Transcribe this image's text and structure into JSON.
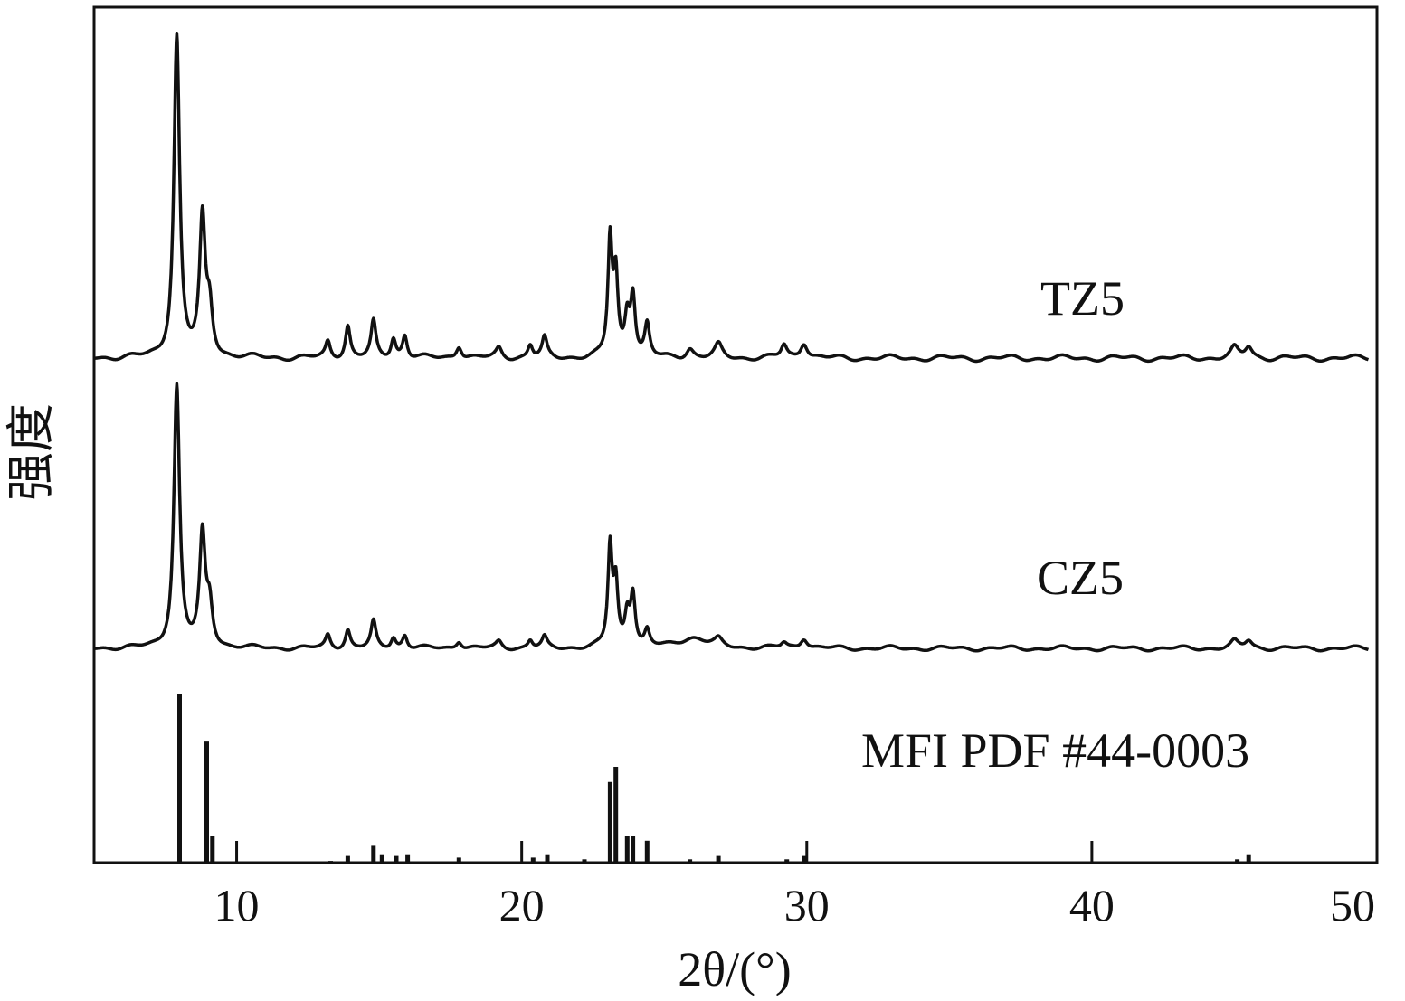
{
  "chart_data": {
    "type": "line",
    "xlabel": "2θ/(°)",
    "ylabel": "强度",
    "xlim": [
      5,
      50
    ],
    "xticks": [
      10,
      20,
      30,
      40,
      50
    ],
    "grid": false,
    "line_color": "#111111",
    "series": [
      {
        "name": "TZ5",
        "kind": "pattern",
        "baseline": 0.03,
        "peaks": [
          {
            "x": 7.9,
            "h": 1.0,
            "w": 0.12
          },
          {
            "x": 8.8,
            "h": 0.42,
            "w": 0.12
          },
          {
            "x": 9.05,
            "h": 0.14,
            "w": 0.12
          },
          {
            "x": 13.2,
            "h": 0.05,
            "w": 0.1
          },
          {
            "x": 13.9,
            "h": 0.1,
            "w": 0.1
          },
          {
            "x": 14.8,
            "h": 0.11,
            "w": 0.1
          },
          {
            "x": 15.5,
            "h": 0.06,
            "w": 0.1
          },
          {
            "x": 15.9,
            "h": 0.07,
            "w": 0.1
          },
          {
            "x": 17.8,
            "h": 0.04,
            "w": 0.12
          },
          {
            "x": 19.2,
            "h": 0.03,
            "w": 0.12
          },
          {
            "x": 20.3,
            "h": 0.04,
            "w": 0.1
          },
          {
            "x": 20.8,
            "h": 0.06,
            "w": 0.1
          },
          {
            "x": 23.1,
            "h": 0.36,
            "w": 0.09
          },
          {
            "x": 23.3,
            "h": 0.24,
            "w": 0.09
          },
          {
            "x": 23.7,
            "h": 0.12,
            "w": 0.1
          },
          {
            "x": 23.9,
            "h": 0.19,
            "w": 0.1
          },
          {
            "x": 24.4,
            "h": 0.1,
            "w": 0.1
          },
          {
            "x": 25.9,
            "h": 0.03,
            "w": 0.15
          },
          {
            "x": 26.9,
            "h": 0.04,
            "w": 0.15
          },
          {
            "x": 29.2,
            "h": 0.04,
            "w": 0.12
          },
          {
            "x": 29.9,
            "h": 0.05,
            "w": 0.15
          },
          {
            "x": 45.0,
            "h": 0.03,
            "w": 0.15
          },
          {
            "x": 45.5,
            "h": 0.035,
            "w": 0.15
          }
        ]
      },
      {
        "name": "CZ5",
        "kind": "pattern",
        "baseline": 0.03,
        "peaks": [
          {
            "x": 7.9,
            "h": 1.0,
            "w": 0.12
          },
          {
            "x": 8.8,
            "h": 0.42,
            "w": 0.12
          },
          {
            "x": 9.05,
            "h": 0.15,
            "w": 0.12
          },
          {
            "x": 13.2,
            "h": 0.05,
            "w": 0.1
          },
          {
            "x": 13.9,
            "h": 0.07,
            "w": 0.1
          },
          {
            "x": 14.8,
            "h": 0.1,
            "w": 0.1
          },
          {
            "x": 15.5,
            "h": 0.04,
            "w": 0.1
          },
          {
            "x": 15.9,
            "h": 0.05,
            "w": 0.1
          },
          {
            "x": 17.8,
            "h": 0.03,
            "w": 0.12
          },
          {
            "x": 19.2,
            "h": 0.025,
            "w": 0.12
          },
          {
            "x": 20.3,
            "h": 0.03,
            "w": 0.1
          },
          {
            "x": 20.8,
            "h": 0.04,
            "w": 0.1
          },
          {
            "x": 23.1,
            "h": 0.38,
            "w": 0.09
          },
          {
            "x": 23.3,
            "h": 0.23,
            "w": 0.09
          },
          {
            "x": 23.7,
            "h": 0.12,
            "w": 0.1
          },
          {
            "x": 23.9,
            "h": 0.2,
            "w": 0.1
          },
          {
            "x": 24.4,
            "h": 0.06,
            "w": 0.1
          },
          {
            "x": 26.0,
            "h": 0.04,
            "w": 0.6
          },
          {
            "x": 26.9,
            "h": 0.025,
            "w": 0.15
          },
          {
            "x": 29.2,
            "h": 0.02,
            "w": 0.12
          },
          {
            "x": 29.9,
            "h": 0.04,
            "w": 0.15
          },
          {
            "x": 45.0,
            "h": 0.025,
            "w": 0.15
          },
          {
            "x": 45.5,
            "h": 0.03,
            "w": 0.15
          }
        ]
      },
      {
        "name": "MFI PDF #44-0003",
        "kind": "sticks",
        "sticks": [
          {
            "x": 8.0,
            "h": 1.0
          },
          {
            "x": 8.95,
            "h": 0.72
          },
          {
            "x": 9.15,
            "h": 0.16
          },
          {
            "x": 13.3,
            "h": 0.01
          },
          {
            "x": 13.9,
            "h": 0.04
          },
          {
            "x": 14.8,
            "h": 0.1
          },
          {
            "x": 15.1,
            "h": 0.05
          },
          {
            "x": 15.6,
            "h": 0.04
          },
          {
            "x": 16.0,
            "h": 0.05
          },
          {
            "x": 17.8,
            "h": 0.03
          },
          {
            "x": 20.4,
            "h": 0.03
          },
          {
            "x": 20.9,
            "h": 0.05
          },
          {
            "x": 22.2,
            "h": 0.02
          },
          {
            "x": 23.1,
            "h": 0.48
          },
          {
            "x": 23.3,
            "h": 0.57
          },
          {
            "x": 23.7,
            "h": 0.16
          },
          {
            "x": 23.9,
            "h": 0.16
          },
          {
            "x": 24.4,
            "h": 0.13
          },
          {
            "x": 25.9,
            "h": 0.02
          },
          {
            "x": 26.9,
            "h": 0.04
          },
          {
            "x": 29.3,
            "h": 0.02
          },
          {
            "x": 29.9,
            "h": 0.04
          },
          {
            "x": 45.1,
            "h": 0.02
          },
          {
            "x": 45.5,
            "h": 0.05
          }
        ]
      }
    ]
  }
}
